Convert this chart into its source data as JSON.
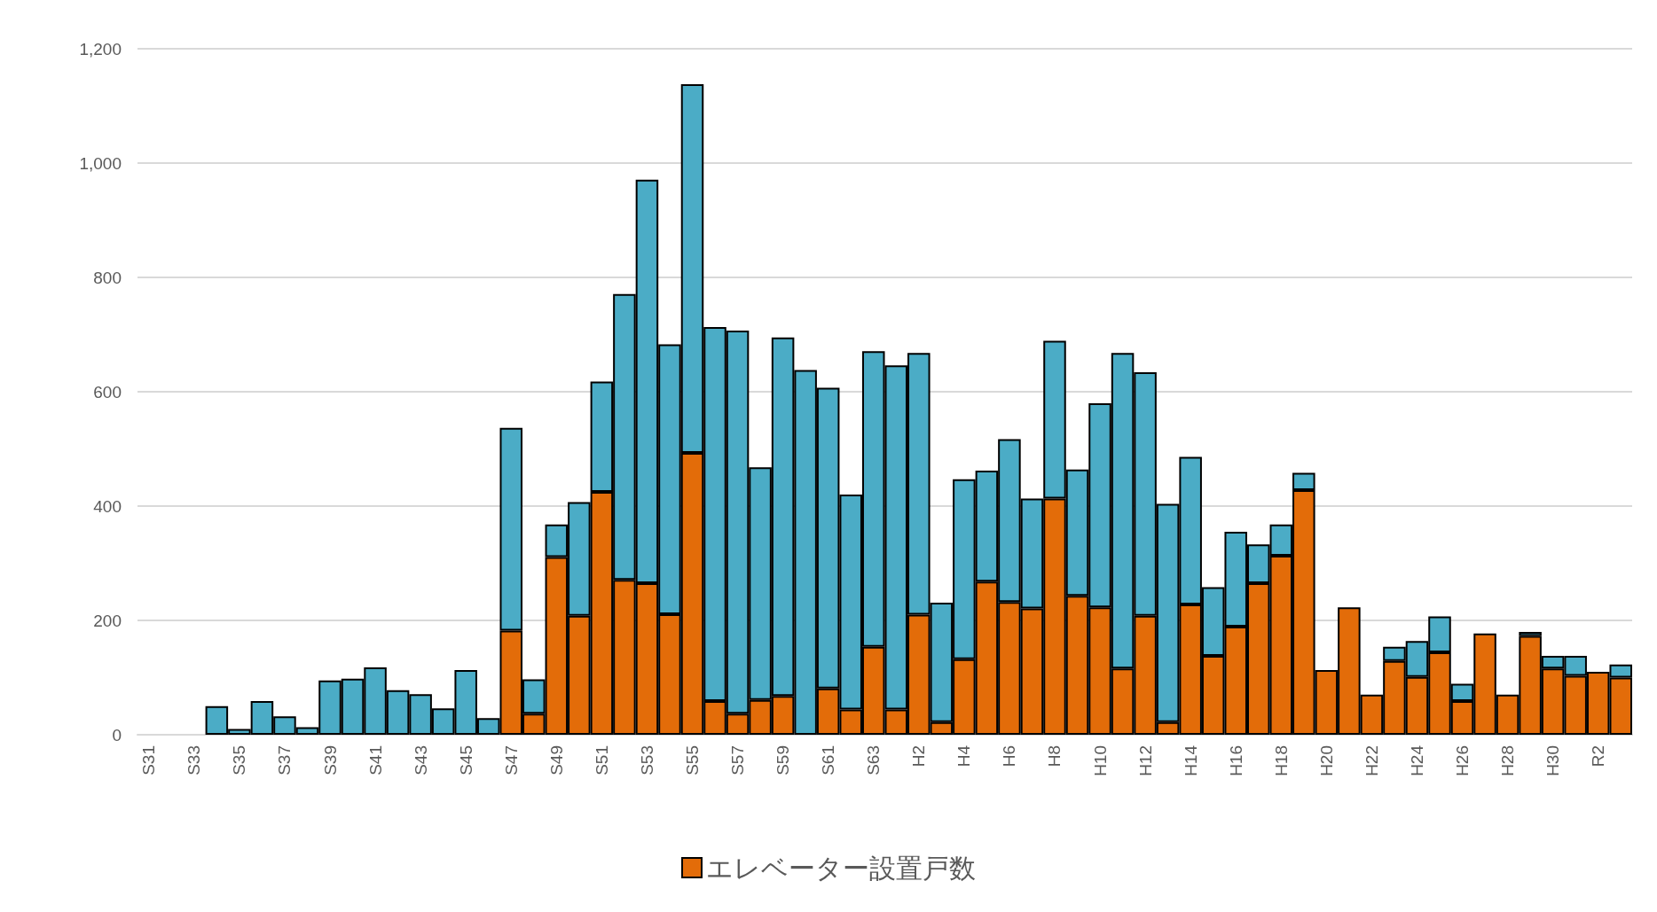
{
  "chart_data": {
    "type": "bar",
    "stacked": true,
    "categories": [
      "S31",
      null,
      "S33",
      null,
      "S35",
      null,
      "S37",
      null,
      "S39",
      null,
      "S41",
      null,
      "S43",
      null,
      "S45",
      null,
      "S47",
      null,
      "S49",
      null,
      "S51",
      null,
      "S53",
      null,
      "S55",
      null,
      "S57",
      null,
      "S59",
      null,
      "S61",
      null,
      "S63",
      null,
      "H2",
      null,
      "H4",
      null,
      "H6",
      null,
      "H8",
      null,
      "H10",
      null,
      "H12",
      null,
      "H14",
      null,
      "H16",
      null,
      "H18",
      null,
      "H20",
      null,
      "H22",
      null,
      "H24",
      null,
      "H26",
      null,
      "H28",
      null,
      "H30",
      null,
      "R2",
      null
    ],
    "series": [
      {
        "name": "エレベーター設置戸数",
        "color": "#e36c09",
        "values": [
          null,
          null,
          null,
          null,
          null,
          null,
          null,
          null,
          null,
          null,
          null,
          null,
          null,
          null,
          null,
          null,
          182,
          37,
          311,
          208,
          425,
          271,
          265,
          211,
          493,
          59,
          37,
          61,
          68,
          null,
          81,
          44,
          154,
          44,
          210,
          22,
          132,
          268,
          232,
          221,
          413,
          243,
          223,
          116,
          208,
          22,
          228,
          138,
          189,
          265,
          313,
          428,
          113,
          223,
          70,
          129,
          101,
          144,
          59,
          177,
          70,
          173,
          116,
          103,
          110,
          100
        ]
      },
      {
        "color": "#4bacc6",
        "values": [
          null,
          null,
          null,
          50,
          10,
          59,
          32,
          13,
          95,
          98,
          118,
          78,
          71,
          46,
          113,
          29,
          355,
          60,
          57,
          199,
          193,
          500,
          706,
          472,
          645,
          654,
          670,
          407,
          627,
          638,
          526,
          376,
          517,
          602,
          458,
          209,
          315,
          194,
          285,
          192,
          276,
          221,
          357,
          552,
          426,
          382,
          258,
          120,
          166,
          68,
          55,
          30,
          null,
          null,
          null,
          25,
          63,
          63,
          30,
          null,
          null,
          7,
          22,
          35,
          null,
          23
        ]
      }
    ],
    "ylim": [
      0,
      1200
    ],
    "yticks": [
      0,
      200,
      400,
      600,
      800,
      {
        "value": 1000,
        "label": "1,000"
      },
      {
        "value": 1200,
        "label": "1,200"
      }
    ],
    "grid": "y",
    "legend": "bottom"
  }
}
